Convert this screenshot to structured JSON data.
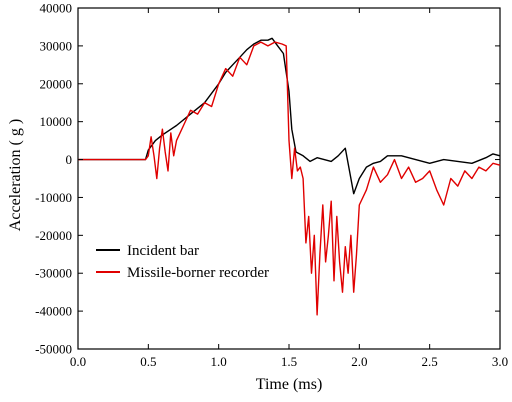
{
  "chart_data": {
    "type": "line",
    "xlabel": "Time (ms)",
    "ylabel": "Acceleration ( g )",
    "xlim": [
      0.0,
      3.0
    ],
    "ylim": [
      -50000,
      40000
    ],
    "x_ticks": [
      "0.0",
      "0.5",
      "1.0",
      "1.5",
      "2.0",
      "2.5",
      "3.0"
    ],
    "y_ticks": [
      "-50000",
      "-40000",
      "-30000",
      "-20000",
      "-10000",
      "0",
      "10000",
      "20000",
      "30000",
      "40000"
    ],
    "legend_position": "lower-left",
    "grid": false,
    "series": [
      {
        "name": "Incident bar",
        "color": "#000000",
        "x": [
          0.0,
          0.3,
          0.48,
          0.5,
          0.55,
          0.6,
          0.7,
          0.8,
          0.9,
          1.0,
          1.05,
          1.1,
          1.15,
          1.2,
          1.25,
          1.3,
          1.35,
          1.38,
          1.42,
          1.46,
          1.5,
          1.52,
          1.55,
          1.6,
          1.65,
          1.7,
          1.75,
          1.8,
          1.85,
          1.9,
          1.93,
          1.96,
          2.0,
          2.05,
          2.1,
          2.15,
          2.2,
          2.3,
          2.4,
          2.5,
          2.6,
          2.7,
          2.8,
          2.9,
          2.95,
          3.0
        ],
        "y": [
          0,
          0,
          0,
          2500,
          5000,
          6500,
          9000,
          12000,
          15000,
          20000,
          23000,
          25000,
          27000,
          29000,
          30500,
          31500,
          31500,
          32000,
          30000,
          28000,
          18000,
          8000,
          2000,
          1000,
          -500,
          500,
          0,
          -500,
          1000,
          3000,
          -3000,
          -9000,
          -5000,
          -2000,
          -1000,
          -500,
          1000,
          1000,
          0,
          -1000,
          0,
          -500,
          -1000,
          500,
          1500,
          1000
        ]
      },
      {
        "name": "Missile-borner recorder",
        "color": "#e00000",
        "x": [
          0.0,
          0.3,
          0.48,
          0.5,
          0.52,
          0.54,
          0.56,
          0.58,
          0.6,
          0.62,
          0.64,
          0.66,
          0.68,
          0.7,
          0.75,
          0.8,
          0.85,
          0.9,
          0.95,
          1.0,
          1.05,
          1.1,
          1.15,
          1.2,
          1.25,
          1.3,
          1.35,
          1.4,
          1.45,
          1.48,
          1.5,
          1.52,
          1.54,
          1.56,
          1.58,
          1.6,
          1.62,
          1.64,
          1.66,
          1.68,
          1.7,
          1.72,
          1.74,
          1.76,
          1.78,
          1.8,
          1.82,
          1.84,
          1.86,
          1.88,
          1.9,
          1.92,
          1.94,
          1.96,
          1.98,
          2.0,
          2.05,
          2.1,
          2.15,
          2.2,
          2.25,
          2.3,
          2.35,
          2.4,
          2.45,
          2.5,
          2.55,
          2.6,
          2.65,
          2.7,
          2.75,
          2.8,
          2.85,
          2.9,
          2.95,
          3.0
        ],
        "y": [
          0,
          0,
          0,
          1000,
          6000,
          1000,
          -5000,
          3000,
          8000,
          2000,
          -3000,
          7000,
          1000,
          5000,
          9000,
          13000,
          12000,
          15000,
          14000,
          20000,
          24000,
          22000,
          27000,
          25000,
          30000,
          31000,
          30000,
          31000,
          30500,
          30000,
          5000,
          -5000,
          3000,
          -3000,
          -2000,
          -5000,
          -22000,
          -15000,
          -30000,
          -20000,
          -41000,
          -25000,
          -12000,
          -27000,
          -20000,
          -11000,
          -32000,
          -15000,
          -27000,
          -35000,
          -23000,
          -30000,
          -20000,
          -35000,
          -25000,
          -12000,
          -8000,
          -2000,
          -6000,
          -4000,
          0,
          -5000,
          -2000,
          -6000,
          -5000,
          -3000,
          -8000,
          -12000,
          -5000,
          -7000,
          -3000,
          -5000,
          -2000,
          -3000,
          -1000,
          -1500
        ]
      }
    ]
  }
}
